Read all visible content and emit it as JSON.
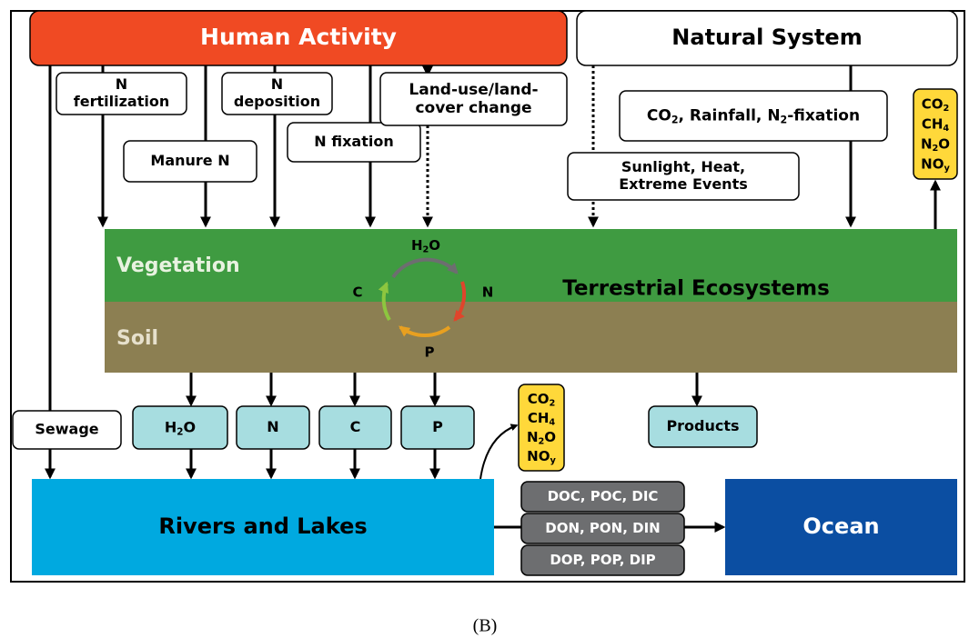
{
  "human_activity": [
    "Human Activity"
  ],
  "natural_system": [
    "Natural System"
  ],
  "n_fertilization": [
    "N",
    "fertilization"
  ],
  "manure_n": [
    "Manure N"
  ],
  "n_deposition": [
    "N",
    "deposition"
  ],
  "n_fixation": [
    "N fixation"
  ],
  "land_use": [
    "Land-use/land-",
    "cover change"
  ],
  "natural_drivers": [
    [
      "CO",
      {
        "sub": "2"
      },
      ", Rainfall, N",
      {
        "sub": "2"
      },
      "-fixation"
    ]
  ],
  "sunlight": [
    "Sunlight, Heat,",
    "Extreme Events"
  ],
  "gases_atmosphere": [
    [
      "CO",
      {
        "sub": "2"
      }
    ],
    [
      "CH",
      {
        "sub": "4"
      }
    ],
    [
      "N",
      {
        "sub": "2"
      },
      "O"
    ],
    [
      "NO",
      {
        "sub": "y"
      }
    ]
  ],
  "gases_water": [
    [
      "CO",
      {
        "sub": "2"
      }
    ],
    [
      "CH",
      {
        "sub": "4"
      }
    ],
    [
      "N",
      {
        "sub": "2"
      },
      "O"
    ],
    [
      "NO",
      {
        "sub": "y"
      }
    ]
  ],
  "vegetation": [
    "Vegetation"
  ],
  "soil": [
    "Soil"
  ],
  "terrestrial": [
    "Terrestrial Ecosystems"
  ],
  "cycle_h2o": [
    [
      "H",
      {
        "sub": "2"
      },
      "O"
    ]
  ],
  "cycle_c": [
    "C"
  ],
  "cycle_n": [
    "N"
  ],
  "cycle_p": [
    "P"
  ],
  "sewage": [
    "Sewage"
  ],
  "flux_h2o": [
    [
      "H",
      {
        "sub": "2"
      },
      "O"
    ]
  ],
  "flux_n": [
    "N"
  ],
  "flux_c": [
    "C"
  ],
  "flux_p": [
    "P"
  ],
  "products": [
    "Products"
  ],
  "rivers": [
    "Rivers and Lakes"
  ],
  "ocean": [
    "Ocean"
  ],
  "doc": [
    "DOC, POC, DIC"
  ],
  "don": [
    "DON, PON, DIN"
  ],
  "dop": [
    "DOP, POP, DIP"
  ],
  "caption": [
    "(B)"
  ]
}
